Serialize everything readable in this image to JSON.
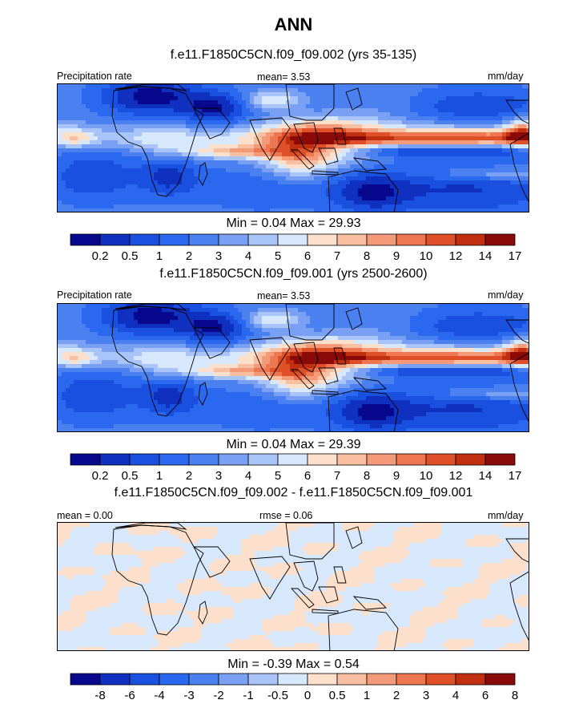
{
  "title": "ANN",
  "chart_data": [
    {
      "type": "heatmap",
      "subtitle": "f.e11.F1850C5CN.f09_f09.002 (yrs 35-135)",
      "left_label": "Precipitation rate",
      "center_label": "mean=   3.53",
      "units": "mm/day",
      "minmax": "Min =   0.04 Max =  29.93",
      "min": 0.04,
      "max": 29.93,
      "mean": 3.53,
      "colorbar_ticks": [
        "0.2",
        "0.5",
        "1",
        "2",
        "3",
        "4",
        "5",
        "6",
        "7",
        "8",
        "9",
        "10",
        "12",
        "14",
        "17"
      ],
      "palette": [
        "#08088f",
        "#1030c0",
        "#1a50e0",
        "#2a68f0",
        "#4a80f0",
        "#7aa0f4",
        "#a8c4f8",
        "#d8e8fc",
        "#fde0cc",
        "#f8c0a0",
        "#f49a78",
        "#ee7650",
        "#e05028",
        "#c03010",
        "#8a0a0a"
      ]
    },
    {
      "type": "heatmap",
      "subtitle": "f.e11.F1850C5CN.f09_f09.001 (yrs 2500-2600)",
      "left_label": "Precipitation rate",
      "center_label": "mean=   3.53",
      "units": "mm/day",
      "minmax": "Min =   0.04 Max =  29.39",
      "min": 0.04,
      "max": 29.39,
      "mean": 3.53,
      "colorbar_ticks": [
        "0.2",
        "0.5",
        "1",
        "2",
        "3",
        "4",
        "5",
        "6",
        "7",
        "8",
        "9",
        "10",
        "12",
        "14",
        "17"
      ],
      "palette": [
        "#08088f",
        "#1030c0",
        "#1a50e0",
        "#2a68f0",
        "#4a80f0",
        "#7aa0f4",
        "#a8c4f8",
        "#d8e8fc",
        "#fde0cc",
        "#f8c0a0",
        "#f49a78",
        "#ee7650",
        "#e05028",
        "#c03010",
        "#8a0a0a"
      ]
    },
    {
      "type": "heatmap",
      "subtitle": "f.e11.F1850C5CN.f09_f09.002 - f.e11.F1850C5CN.f09_f09.001",
      "left_label": "mean =   0.00",
      "center_label": "rmse =   0.06",
      "units": "mm/day",
      "minmax": "Min =  -0.39 Max =   0.54",
      "min": -0.39,
      "max": 0.54,
      "mean": 0.0,
      "rmse": 0.06,
      "colorbar_ticks": [
        "-8",
        "-6",
        "-4",
        "-3",
        "-2",
        "-1",
        "-0.5",
        "0",
        "0.5",
        "1",
        "2",
        "3",
        "4",
        "6",
        "8"
      ],
      "palette": [
        "#08088f",
        "#1030c0",
        "#1a50e0",
        "#2a68f0",
        "#4a80f0",
        "#7aa0f4",
        "#a8c4f8",
        "#d8e8fc",
        "#fde0cc",
        "#f8c0a0",
        "#f49a78",
        "#ee7650",
        "#e05028",
        "#c03010",
        "#8a0a0a"
      ]
    }
  ]
}
